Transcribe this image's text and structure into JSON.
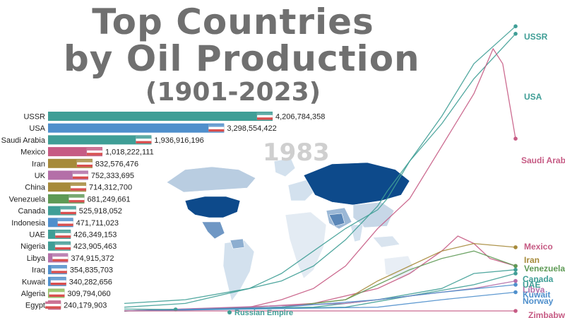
{
  "title": {
    "line1": "Top Countries",
    "line2": "by Oil Production",
    "line3": "(1901-2023)"
  },
  "year": "1983",
  "colors": {
    "bar_teal": "#3f9e96",
    "bar_blue": "#4f8fcc",
    "bar_pink": "#c65b84",
    "bar_olive": "#a68a3a",
    "map_dark": "#0d4a8b",
    "map_light": "#d3e1ee",
    "line_label_teal": "#2b9d9a"
  },
  "chart_data": [
    {
      "type": "bar",
      "title": "",
      "categories": [
        "USSR",
        "USA",
        "Saudi Arabia",
        "Mexico",
        "Iran",
        "UK",
        "China",
        "Venezuela",
        "Canada",
        "Indonesia",
        "UAE",
        "Nigeria",
        "Libya",
        "Iraq",
        "Kuwait",
        "Algeria",
        "Egypt"
      ],
      "values": [
        4206784358,
        3298554422,
        1936916196,
        1018222111,
        832576476,
        752333695,
        714312700,
        681249661,
        525918052,
        471711023,
        426349153,
        423905463,
        374915372,
        354835703,
        340282656,
        309794060,
        240179903
      ],
      "value_labels": [
        "4,206,784,358",
        "3,298,554,422",
        "1,936,916,196",
        "1,018,222,111",
        "832,576,476",
        "752,333,695",
        "714,312,700",
        "681,249,661",
        "525,918,052",
        "471,711,023",
        "426,349,153",
        "423,905,463",
        "374,915,372",
        "354,835,703",
        "340,282,656",
        "309,794,060",
        "240,179,903"
      ],
      "bar_colors": [
        "#3f9e96",
        "#4f8fcc",
        "#3f9e96",
        "#c65b84",
        "#a68a3a",
        "#b46fa8",
        "#a68a3a",
        "#5e9a55",
        "#3f9e96",
        "#4f8fcc",
        "#3f9e96",
        "#3f9e96",
        "#b46fa8",
        "#4f8fcc",
        "#4f8fcc",
        "#8fbf5e",
        "#c65b84"
      ],
      "flags": [
        "USSR flag",
        "USA flag",
        "Saudi Arabia flag",
        "Mexico flag",
        "Iran flag",
        "UK flag",
        "China flag",
        "Venezuela flag",
        "Canada flag",
        "Indonesia flag",
        "UAE flag",
        "Nigeria flag",
        "Libya flag",
        "Iraq flag",
        "Kuwait flag",
        "Algeria flag",
        "Egypt flag"
      ],
      "xlim": [
        0,
        4206784358
      ],
      "year": "1983"
    },
    {
      "type": "line",
      "title": "",
      "x_range": [
        1901,
        2023
      ],
      "series": [
        {
          "name": "USSR",
          "color": "#3f9e96",
          "x": [
            1901,
            1920,
            1940,
            1950,
            1960,
            1970,
            1980,
            1983,
            1990,
            2000,
            2010,
            2023
          ],
          "y": [
            2,
            3,
            6,
            8,
            12,
            19,
            28,
            32,
            40,
            50,
            62,
            74
          ]
        },
        {
          "name": "USA",
          "color": "#3f9e96",
          "x": [
            1901,
            1920,
            1940,
            1950,
            1960,
            1970,
            1980,
            1983,
            1990,
            2000,
            2010,
            2023
          ],
          "y": [
            1,
            2,
            6,
            10,
            16,
            22,
            27,
            30,
            40,
            52,
            66,
            76
          ]
        },
        {
          "name": "Saudi Arabia",
          "color": "#c65b84",
          "x": [
            1901,
            1940,
            1950,
            1960,
            1970,
            1980,
            1990,
            2000,
            2010,
            2016,
            2019,
            2023
          ],
          "y": [
            0,
            1,
            3,
            6,
            12,
            22,
            30,
            44,
            58,
            70,
            66,
            46
          ]
        },
        {
          "name": "Mexico",
          "color": "#c65b84",
          "x": [
            1901,
            1940,
            1960,
            1980,
            1990,
            2000,
            2005,
            2010,
            2015,
            2023
          ],
          "y": [
            0,
            1,
            2,
            6,
            10,
            16,
            20,
            18,
            14,
            12
          ]
        },
        {
          "name": "Iran",
          "color": "#a68a3a",
          "x": [
            1901,
            1950,
            1970,
            1980,
            1990,
            2000,
            2010,
            2023
          ],
          "y": [
            0,
            1,
            3,
            8,
            12,
            16,
            18,
            17
          ]
        },
        {
          "name": "Venezuela",
          "color": "#5e9a55",
          "x": [
            1901,
            1950,
            1970,
            1980,
            1990,
            2000,
            2010,
            2023
          ],
          "y": [
            0,
            1,
            3,
            7,
            11,
            14,
            16,
            12
          ]
        },
        {
          "name": "Canada",
          "color": "#3f9e96",
          "x": [
            1901,
            1960,
            1980,
            2000,
            2010,
            2023
          ],
          "y": [
            0,
            1,
            3,
            6,
            10,
            11
          ]
        },
        {
          "name": "UAE",
          "color": "#3f9e96",
          "x": [
            1901,
            1970,
            1990,
            2010,
            2023
          ],
          "y": [
            0,
            1,
            4,
            7,
            10
          ]
        },
        {
          "name": "Libya",
          "color": "#b46fa8",
          "x": [
            1901,
            1970,
            1990,
            2010,
            2023
          ],
          "y": [
            0,
            2,
            4,
            6,
            8
          ]
        },
        {
          "name": "Kuwait",
          "color": "#4f8fcc",
          "x": [
            1901,
            1950,
            1980,
            2000,
            2023
          ],
          "y": [
            0,
            1,
            3,
            5,
            7
          ]
        },
        {
          "name": "Norway",
          "color": "#4f8fcc",
          "x": [
            1901,
            1980,
            2000,
            2023
          ],
          "y": [
            0,
            1,
            3,
            5
          ]
        },
        {
          "name": "Russian Empire",
          "color": "#3f9e96",
          "x": [
            1901,
            1917
          ],
          "y": [
            0.5,
            0.4
          ]
        },
        {
          "name": "Zimbabwe",
          "color": "#c65b84",
          "x": [
            1901,
            2023
          ],
          "y": [
            0,
            0
          ]
        }
      ],
      "end_labels": [
        "USSR",
        "USA",
        "Saudi Arabia",
        "Mexico",
        "Iran",
        "Venezuela",
        "Canada",
        "UAE",
        "Libya",
        "Kuwait",
        "Norway",
        "Zimbabwe"
      ],
      "annotation": "Russian Empire"
    }
  ]
}
